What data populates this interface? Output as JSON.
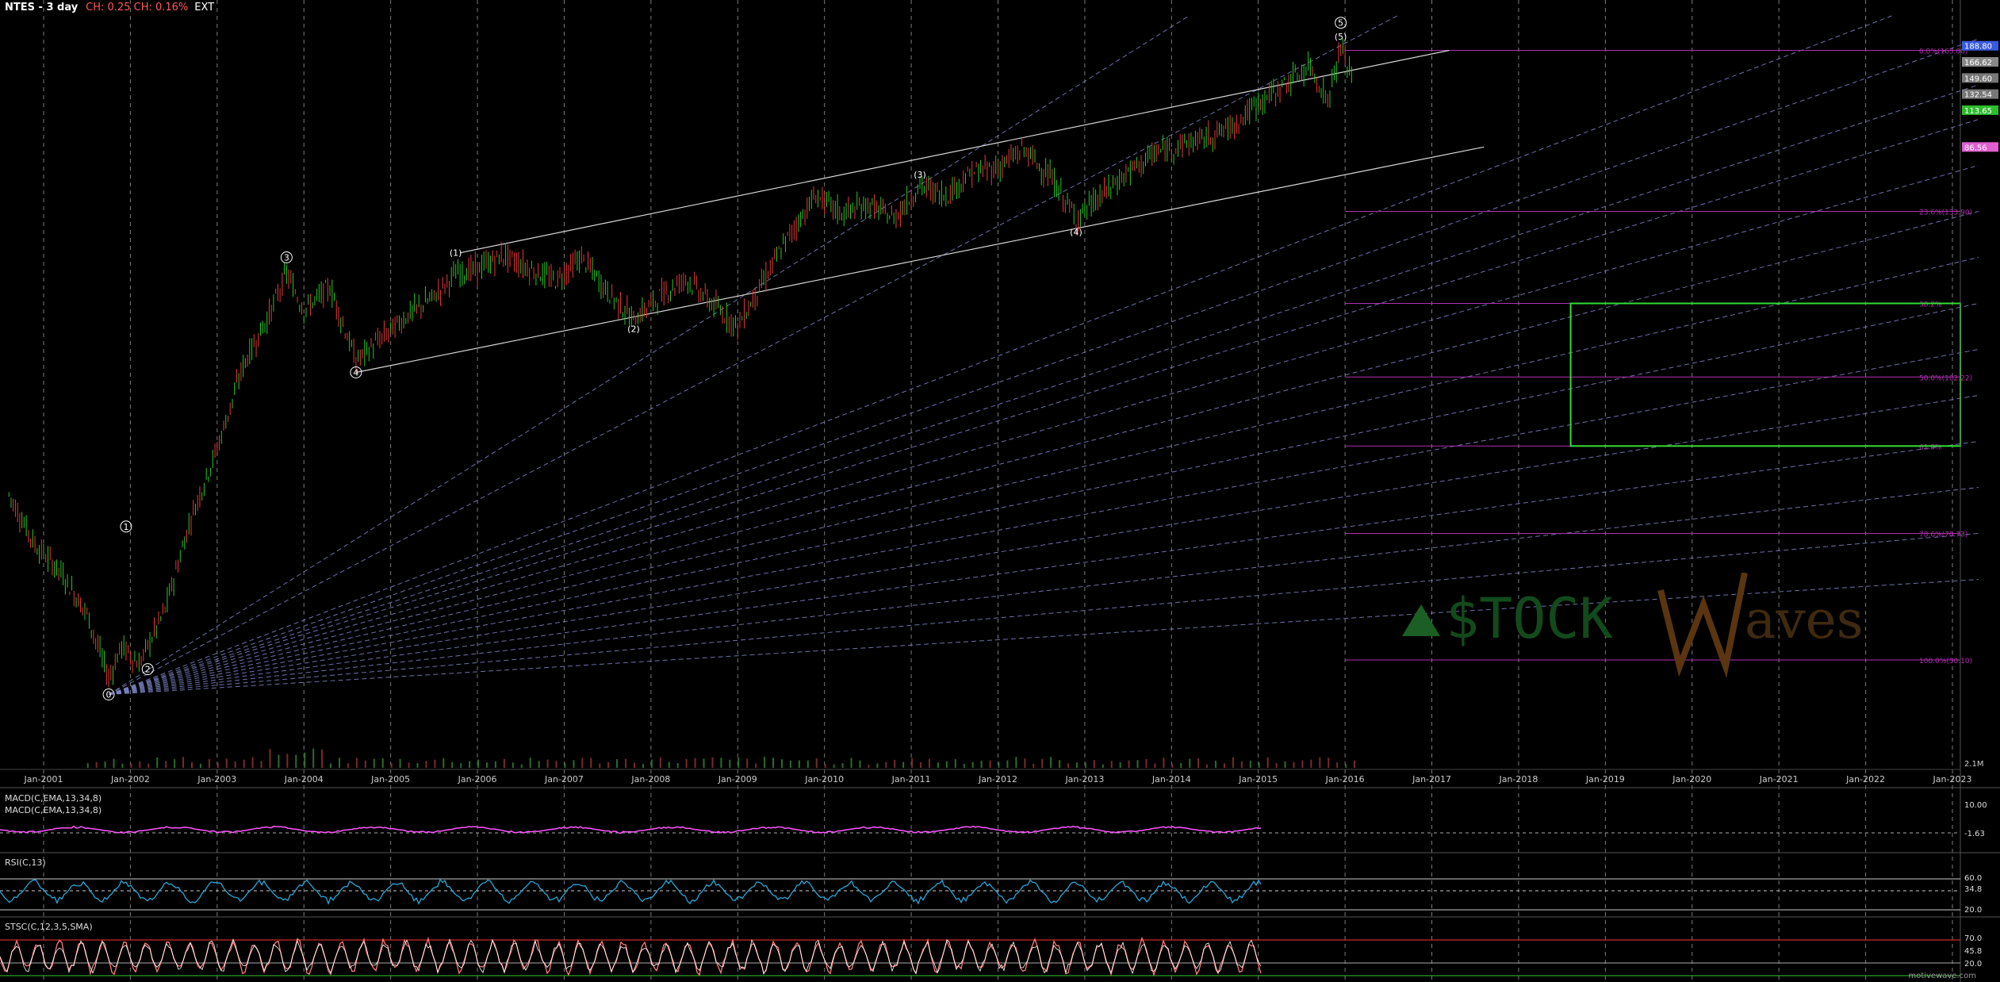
{
  "header": {
    "symbol": "NTES - 3 day",
    "change": "CH: 0.25  CH: 0.16%",
    "ext": "EXT"
  },
  "colors": {
    "background": "#000000",
    "gridline": "#9a9a9a",
    "channel": "#d8d8d8",
    "fan": "#7f86c8",
    "fib": "#b02fb0",
    "box": "#33dd33",
    "candle_up": "#29c529",
    "candle_down": "#e23a3a",
    "macd": "#ff55ff",
    "rsi": "#2aa7d8",
    "stoch_k": "#ff7a7a",
    "stoch_d": "#ffffff"
  },
  "chart_data": {
    "type": "line",
    "title": "NTES - 3 day",
    "x_ticks": [
      "Jan-2001",
      "Jan-2002",
      "Jan-2003",
      "Jan-2004",
      "Jan-2005",
      "Jan-2006",
      "Jan-2007",
      "Jan-2008",
      "Jan-2009",
      "Jan-2010",
      "Jan-2011",
      "Jan-2012",
      "Jan-2013",
      "Jan-2014",
      "Jan-2015",
      "Jan-2016",
      "Jan-2017",
      "Jan-2018",
      "Jan-2019",
      "Jan-2020",
      "Jan-2021",
      "Jan-2022",
      "Jan-2023"
    ],
    "price_series": {
      "name": "NTES",
      "points": [
        [
          2000.6,
          92
        ],
        [
          2000.9,
          70
        ],
        [
          2001.2,
          58
        ],
        [
          2001.5,
          40
        ],
        [
          2001.75,
          12
        ],
        [
          2001.9,
          26
        ],
        [
          2002.1,
          18
        ],
        [
          2002.4,
          42
        ],
        [
          2002.7,
          82
        ],
        [
          2003.0,
          112
        ],
        [
          2003.3,
          148
        ],
        [
          2003.6,
          170
        ],
        [
          2003.8,
          188
        ],
        [
          2004.0,
          172
        ],
        [
          2004.3,
          182
        ],
        [
          2004.6,
          150
        ],
        [
          2004.9,
          160
        ],
        [
          2005.2,
          170
        ],
        [
          2005.5,
          178
        ],
        [
          2005.75,
          188
        ],
        [
          2006.0,
          190
        ],
        [
          2006.3,
          196
        ],
        [
          2006.6,
          190
        ],
        [
          2006.9,
          185
        ],
        [
          2007.2,
          195
        ],
        [
          2007.5,
          180
        ],
        [
          2007.8,
          168
        ],
        [
          2008.1,
          178
        ],
        [
          2008.4,
          186
        ],
        [
          2008.7,
          175
        ],
        [
          2009.0,
          165
        ],
        [
          2009.3,
          185
        ],
        [
          2009.6,
          205
        ],
        [
          2009.9,
          222
        ],
        [
          2010.2,
          214
        ],
        [
          2010.5,
          218
        ],
        [
          2010.8,
          212
        ],
        [
          2011.1,
          226
        ],
        [
          2011.4,
          222
        ],
        [
          2011.7,
          232
        ],
        [
          2012.0,
          234
        ],
        [
          2012.3,
          242
        ],
        [
          2012.6,
          230
        ],
        [
          2012.9,
          212
        ],
        [
          2013.2,
          222
        ],
        [
          2013.5,
          232
        ],
        [
          2013.8,
          240
        ],
        [
          2014.1,
          244
        ],
        [
          2014.4,
          247
        ],
        [
          2014.7,
          252
        ],
        [
          2015.0,
          262
        ],
        [
          2015.3,
          270
        ],
        [
          2015.6,
          278
        ],
        [
          2015.8,
          263
        ],
        [
          2015.95,
          286
        ],
        [
          2016.1,
          272
        ]
      ]
    },
    "wave_labels": [
      {
        "text": "0",
        "x": 2001.75,
        "y": 5
      },
      {
        "text": "1",
        "x": 2001.95,
        "y": 78
      },
      {
        "text": "2",
        "x": 2002.2,
        "y": 16
      },
      {
        "text": "3",
        "x": 2003.8,
        "y": 195
      },
      {
        "text": "4",
        "x": 2004.6,
        "y": 145
      },
      {
        "text": "(1)",
        "x": 2005.75,
        "y": 197
      },
      {
        "text": "(2)",
        "x": 2007.8,
        "y": 164
      },
      {
        "text": "(3)",
        "x": 2011.1,
        "y": 231
      },
      {
        "text": "(4)",
        "x": 2012.9,
        "y": 206
      },
      {
        "text": "(5)",
        "x": 2015.95,
        "y": 291
      },
      {
        "text": "5",
        "x": 2015.95,
        "y": 297
      }
    ],
    "fib_levels": [
      {
        "label": "0.0%(165.00)",
        "y": 285
      },
      {
        "label": "23.6%(133.90)",
        "y": 215
      },
      {
        "label": "38.2%",
        "y": 175
      },
      {
        "label": "50.0%(102.22)",
        "y": 143
      },
      {
        "label": "61.8%",
        "y": 113
      },
      {
        "label": "78.6%(70.73)",
        "y": 75
      },
      {
        "label": "100.0%(50.10)",
        "y": 20
      }
    ],
    "right_axis_labels": [
      {
        "label": "188.80",
        "y": 287,
        "color": "#3a5adf"
      },
      {
        "label": "166.62",
        "y": 280,
        "color": "#888888"
      },
      {
        "label": "149.60",
        "y": 273,
        "color": "#777777"
      },
      {
        "label": "132.54",
        "y": 266,
        "color": "#777777"
      },
      {
        "label": "113.65",
        "y": 259,
        "color": "#2ebc2e"
      },
      {
        "label": "86.56",
        "y": 243,
        "color": "#e060d0"
      }
    ],
    "volume_label": "2.1M",
    "ylim": [
      0,
      300
    ],
    "xlim": [
      2000.5,
      2023.3
    ],
    "grid": true
  },
  "indicators": {
    "macd": {
      "label1": "MACD(C,EMA,13,34,8)",
      "label2": "MACD(C,EMA,13,34,8)",
      "ticks": [
        "10.00",
        "-1.63"
      ]
    },
    "rsi": {
      "label": "RSI(C,13)",
      "ticks": [
        "60.0",
        "34.8",
        "20.0"
      ]
    },
    "stoch": {
      "label": "STSC(C,12,3,5,SMA)",
      "ticks": [
        "70.0",
        "45.8",
        "20.0"
      ]
    }
  },
  "watermark": {
    "text1": "$TOCK",
    "text2": "aves"
  },
  "footer": "motivewave.com"
}
